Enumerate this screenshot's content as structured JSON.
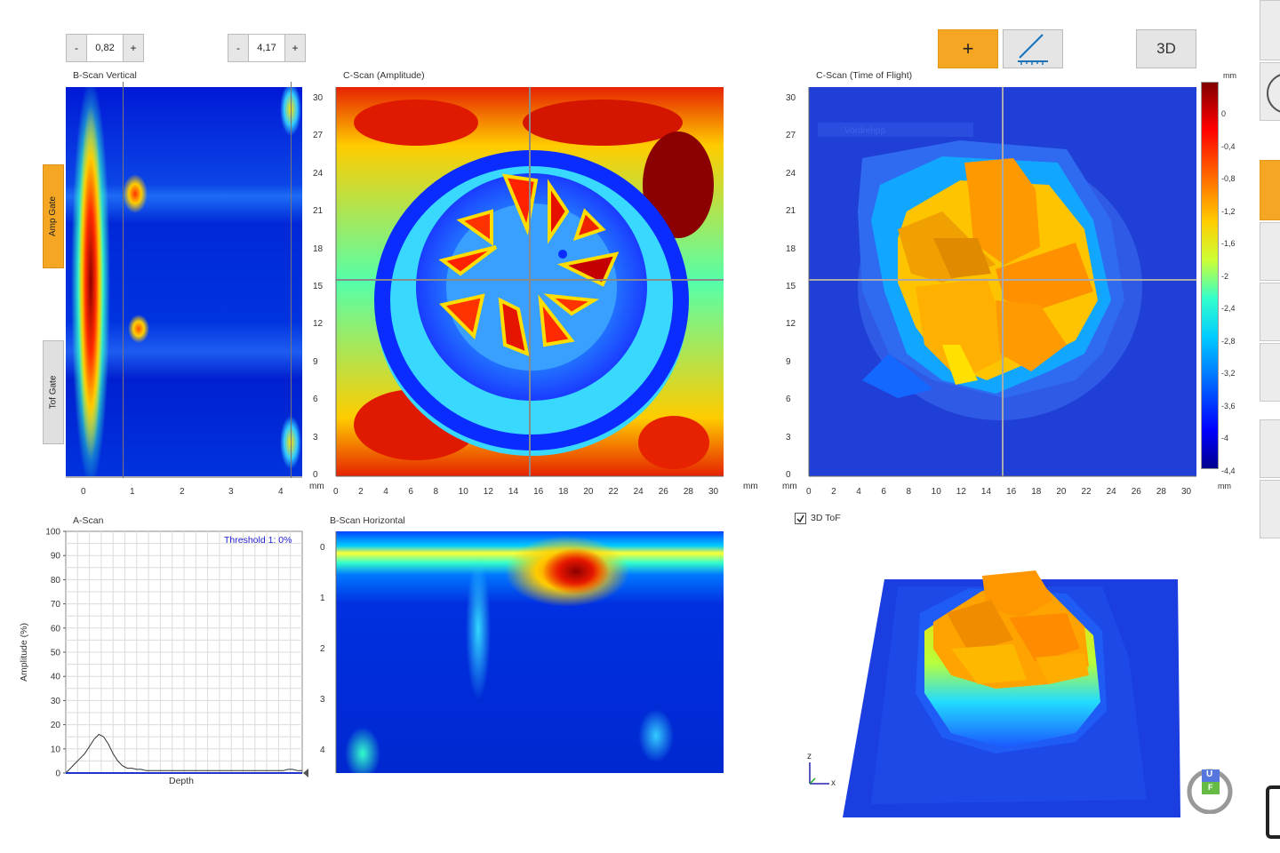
{
  "steppers": {
    "left": {
      "minus": "-",
      "value": "0,82",
      "plus": "+"
    },
    "right": {
      "minus": "-",
      "value": "4,17",
      "plus": "+"
    }
  },
  "toolbar": {
    "add_label": "+",
    "view3d_label": "3D"
  },
  "panels": {
    "bscan_vertical": {
      "title": "B-Scan Vertical",
      "amp_gate": "Amp Gate",
      "tof_gate": "Tof Gate",
      "x_ticks": [
        "0",
        "1",
        "2",
        "3",
        "4"
      ]
    },
    "cscan_amplitude": {
      "title": "C-Scan (Amplitude)",
      "y_ticks": [
        "30",
        "27",
        "24",
        "21",
        "18",
        "15",
        "12",
        "9",
        "6",
        "3",
        "0"
      ],
      "x_ticks": [
        "0",
        "2",
        "4",
        "6",
        "8",
        "10",
        "12",
        "14",
        "16",
        "18",
        "20",
        "22",
        "24",
        "26",
        "28",
        "30"
      ],
      "unit_y": "mm",
      "unit_x": "mm"
    },
    "cscan_tof": {
      "title": "C-Scan (Time of Flight)",
      "overlay_text": "Vordrehpp",
      "y_ticks": [
        "30",
        "27",
        "24",
        "21",
        "18",
        "15",
        "12",
        "9",
        "6",
        "3",
        "0"
      ],
      "x_ticks": [
        "0",
        "2",
        "4",
        "6",
        "8",
        "10",
        "12",
        "14",
        "16",
        "18",
        "20",
        "22",
        "24",
        "26",
        "28",
        "30"
      ],
      "unit_y": "mm",
      "unit_x": "mm",
      "colorbar_unit_top": "mm",
      "colorbar_unit_bottom": "mm",
      "colorbar_ticks": [
        "0",
        "-0,4",
        "-0,8",
        "-1,2",
        "-1,6",
        "-2",
        "-2,4",
        "-2,8",
        "-3,2",
        "-3,6",
        "-4",
        "-4,4"
      ],
      "checkbox_label": "3D ToF",
      "checkbox_checked": true
    },
    "ascan": {
      "title": "A-Scan",
      "threshold": "Threshold 1: 0%",
      "ylabel": "Amplitude (%)",
      "xlabel": "Depth",
      "y_ticks": [
        "100",
        "90",
        "80",
        "70",
        "60",
        "50",
        "40",
        "30",
        "20",
        "10",
        "0"
      ]
    },
    "bscan_horizontal": {
      "title": "B-Scan Horizontal",
      "y_ticks": [
        "0",
        "1",
        "2",
        "3",
        "4"
      ]
    },
    "view3d": {
      "axis_z": "z",
      "axis_x": "x",
      "logo_u": "U",
      "logo_f": "F"
    }
  },
  "colors": {
    "orange": "#f5a623",
    "jet_dark_blue": "#00008f",
    "jet_red": "#8b0000",
    "gray_button": "#e5e5e5"
  },
  "chart_data": {
    "type": "line",
    "title": "A-Scan",
    "xlabel": "Depth",
    "ylabel": "Amplitude (%)",
    "ylim": [
      0,
      100
    ],
    "x": [
      0,
      2,
      4,
      6,
      8,
      10,
      12,
      14,
      16,
      18,
      20,
      22,
      24,
      26,
      28,
      30,
      32,
      34,
      36,
      38,
      40,
      42,
      44,
      46,
      48,
      50,
      52,
      54,
      56,
      58,
      60,
      62,
      64,
      66,
      68,
      70,
      72,
      74,
      76,
      78,
      80,
      82,
      84,
      86,
      88,
      90,
      92,
      94,
      96,
      98,
      100
    ],
    "values": [
      0,
      2,
      4,
      6,
      8,
      11,
      14,
      16,
      15,
      12,
      8,
      5,
      3,
      2,
      2,
      1.5,
      1.5,
      1,
      1,
      1,
      1,
      1,
      1,
      1,
      1,
      1,
      1,
      1,
      1,
      1,
      1,
      1,
      1,
      1,
      1,
      1,
      1,
      1,
      1,
      1,
      1,
      1,
      1,
      1,
      1,
      1,
      1,
      1.5,
      1.5,
      1,
      1
    ],
    "grid": true
  }
}
